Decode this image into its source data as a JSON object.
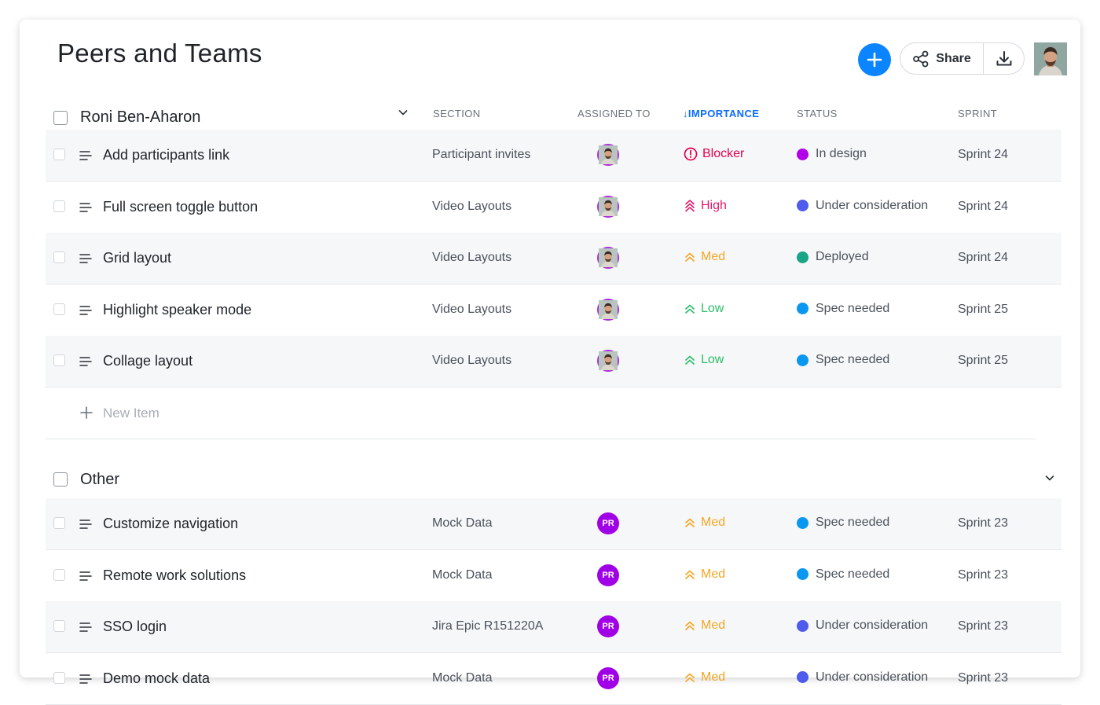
{
  "page": {
    "title": "Peers and Teams"
  },
  "toolbar": {
    "share_label": "Share",
    "icons": [
      "plus-icon",
      "share-icon",
      "download-icon"
    ]
  },
  "columns": {
    "section": "SECTION",
    "assigned_to": "ASSIGNED TO",
    "importance": "IMPORTANCE",
    "importance_arrow": "↓",
    "status": "STATUS",
    "sprint": "SPRINT"
  },
  "colors": {
    "accent": "#0a84ff",
    "blocker": "#e5004c",
    "high": "#e5196b",
    "med": "#f5a623",
    "low": "#2bbf6a"
  },
  "groups": [
    {
      "name": "Roni Ben-Aharon",
      "items": [
        {
          "name": "Add participants link",
          "section": "Participant invites",
          "assignee": "photo",
          "importance": "Blocker",
          "importance_color": "#e5004c",
          "importance_icon": "alert-circle-icon",
          "status": "In design",
          "status_color": "#b100e8",
          "sprint": "Sprint 24"
        },
        {
          "name": "Full screen toggle button",
          "section": "Video Layouts",
          "assignee": "photo",
          "importance": "High",
          "importance_color": "#e5196b",
          "importance_icon": "triple-chevron-up-icon",
          "status": "Under consideration",
          "status_color": "#4f5bea",
          "sprint": "Sprint 24"
        },
        {
          "name": "Grid layout",
          "section": "Video Layouts",
          "assignee": "photo",
          "importance": "Med",
          "importance_color": "#f5a623",
          "importance_icon": "double-chevron-up-icon",
          "status": "Deployed",
          "status_color": "#1aa584",
          "sprint": "Sprint 24"
        },
        {
          "name": "Highlight speaker mode",
          "section": "Video Layouts",
          "assignee": "photo",
          "importance": "Low",
          "importance_color": "#2bbf6a",
          "importance_icon": "double-chevron-up-icon",
          "status": "Spec needed",
          "status_color": "#0a97f0",
          "sprint": "Sprint 25"
        },
        {
          "name": "Collage layout",
          "section": "Video Layouts",
          "assignee": "photo",
          "importance": "Low",
          "importance_color": "#2bbf6a",
          "importance_icon": "double-chevron-up-icon",
          "status": "Spec needed",
          "status_color": "#0a97f0",
          "sprint": "Sprint 25"
        }
      ],
      "new_item_label": "New Item"
    },
    {
      "name": "Other",
      "items": [
        {
          "name": "Customize navigation",
          "section": "Mock Data",
          "assignee": "PR",
          "importance": "Med",
          "importance_color": "#f5a623",
          "importance_icon": "double-chevron-up-icon",
          "status": "Spec needed",
          "status_color": "#0a97f0",
          "sprint": "Sprint 23"
        },
        {
          "name": "Remote work solutions",
          "section": "Mock Data",
          "assignee": "PR",
          "importance": "Med",
          "importance_color": "#f5a623",
          "importance_icon": "double-chevron-up-icon",
          "status": "Spec needed",
          "status_color": "#0a97f0",
          "sprint": "Sprint 23"
        },
        {
          "name": "SSO login",
          "section": "Jira Epic R151220A",
          "assignee": "PR",
          "importance": "Med",
          "importance_color": "#f5a623",
          "importance_icon": "double-chevron-up-icon",
          "status": "Under consideration",
          "status_color": "#4f5bea",
          "sprint": "Sprint 23"
        },
        {
          "name": "Demo mock data",
          "section": "Mock Data",
          "assignee": "PR",
          "importance": "Med",
          "importance_color": "#f5a623",
          "importance_icon": "double-chevron-up-icon",
          "status": "Under consideration",
          "status_color": "#4f5bea",
          "sprint": "Sprint 23"
        }
      ]
    }
  ]
}
